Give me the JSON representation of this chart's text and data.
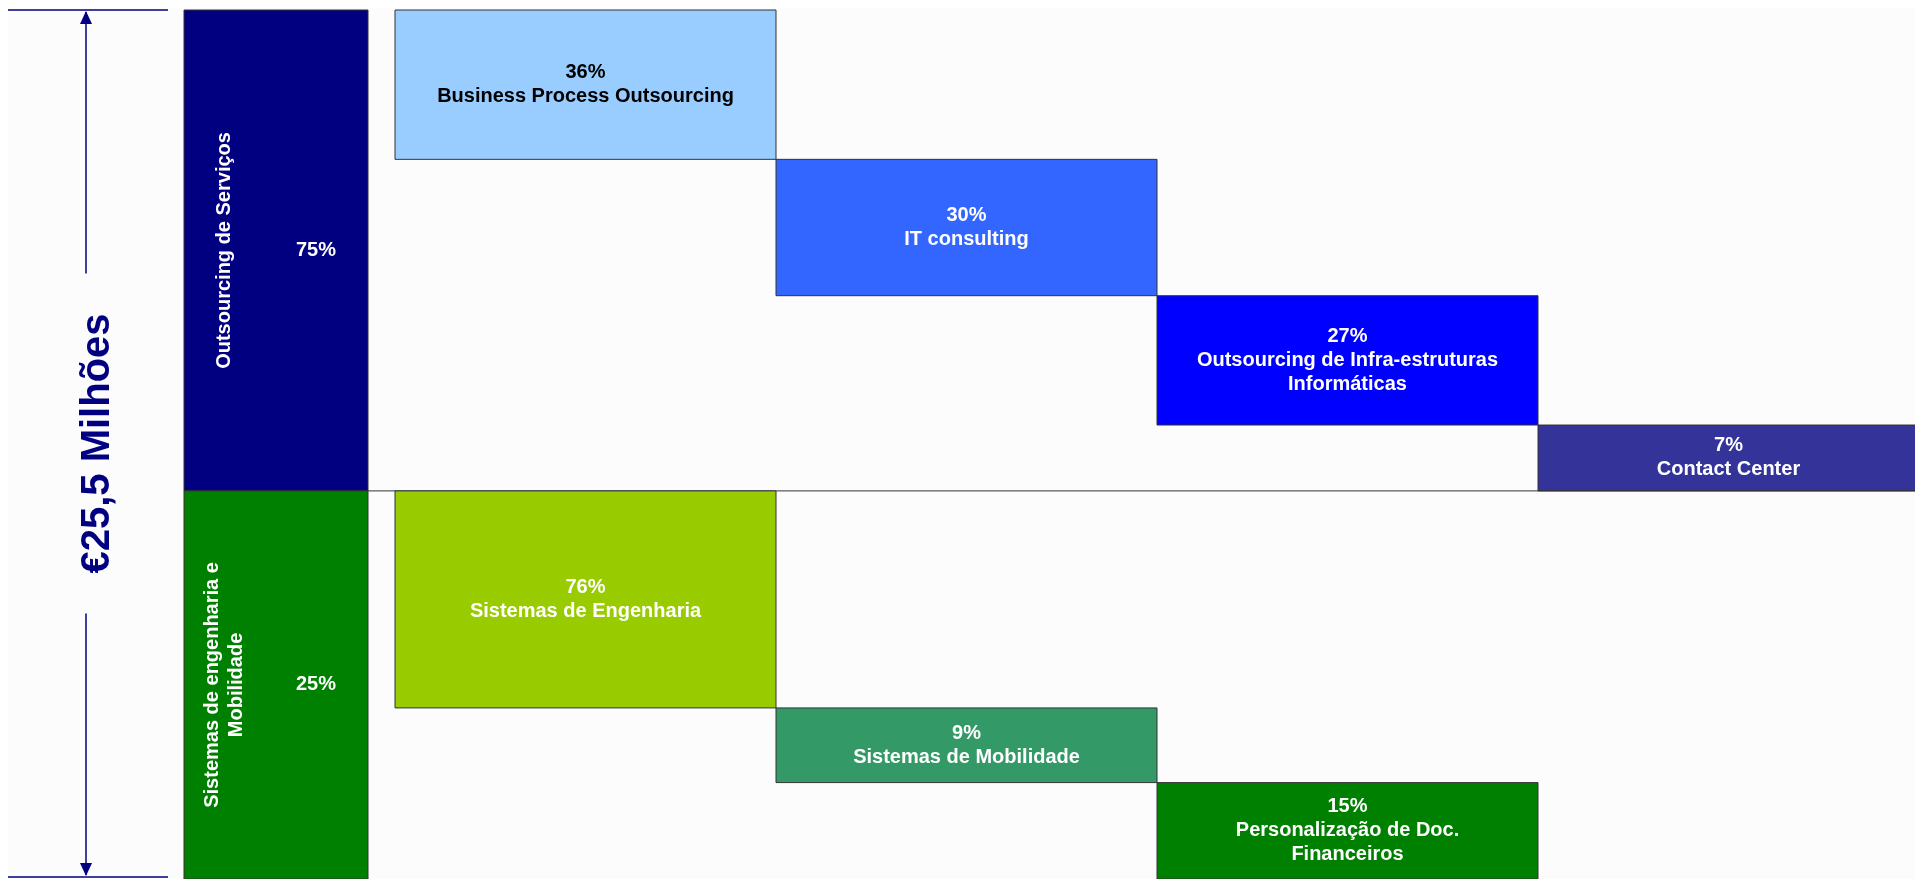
{
  "chart_data": {
    "type": "other",
    "ylabel": "€25,5 Milhões",
    "categories": [
      "Outsourcing de Serviços",
      "Business Process Outsourcing",
      "IT consulting",
      "Outsourcing de Infra-estruturas Informáticas",
      "Contact Center",
      "Sistemas de engenharia e Mobilidade",
      "Sistemas de Engenharia",
      "Sistemas de Mobilidade",
      "Personalização de Doc. Financeiros"
    ],
    "series": [
      {
        "values": [
          75,
          36,
          30,
          27,
          7,
          null,
          null,
          null,
          null
        ],
        "colors": [
          "#000080",
          "#99ccff",
          "#3366ff",
          "#0000ff",
          "#333399",
          null,
          null,
          null,
          null
        ],
        "value_labels": [
          "75%",
          "36%",
          "30%",
          "27%",
          "7%",
          null,
          null,
          null,
          null
        ]
      },
      {
        "values": [
          null,
          null,
          null,
          null,
          null,
          25,
          76,
          9,
          15
        ],
        "colors": [
          null,
          null,
          null,
          null,
          null,
          "#008000",
          "#99cc00",
          "#339966",
          "#008000"
        ],
        "value_labels": [
          null,
          null,
          null,
          null,
          null,
          "25%",
          "76%",
          "9%",
          "15%"
        ]
      }
    ]
  }
}
